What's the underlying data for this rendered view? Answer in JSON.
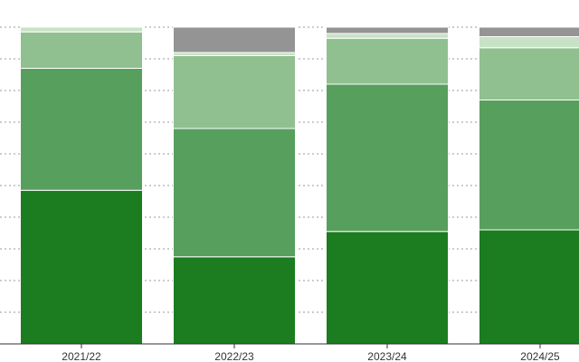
{
  "chart_data": {
    "type": "bar",
    "stacked": true,
    "orientation": "vertical",
    "categories": [
      "2021/22",
      "2022/23",
      "2023/24",
      "2024/25"
    ],
    "ylim": [
      0,
      100
    ],
    "grid": true,
    "series": [
      {
        "color": "#1b7c20",
        "values": [
          48.5,
          27.5,
          35.5,
          36.0
        ]
      },
      {
        "color": "#579f5c",
        "values": [
          38.5,
          40.5,
          46.5,
          41.0
        ]
      },
      {
        "color": "#90c08f",
        "values": [
          11.5,
          23.0,
          14.5,
          16.5
        ]
      },
      {
        "color": "#c8e2c7",
        "values": [
          1.5,
          1.0,
          1.5,
          3.5
        ]
      },
      {
        "color": "#949494",
        "values": [
          0.0,
          8.0,
          2.0,
          3.0
        ]
      }
    ]
  }
}
